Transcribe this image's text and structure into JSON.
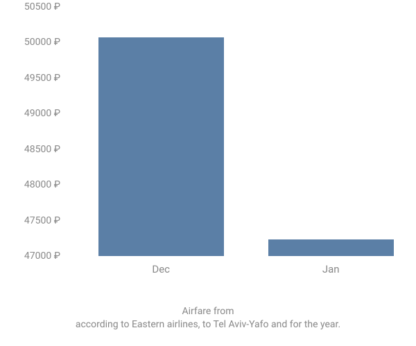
{
  "chart": {
    "type": "bar",
    "categories": [
      "Dec",
      "Jan"
    ],
    "values": [
      50070,
      47230
    ],
    "bar_color": "#5b7fa6",
    "bar_width_pct": 37,
    "bar_positions_pct": [
      28,
      78
    ],
    "ylim": [
      47000,
      50500
    ],
    "ytick_step": 500,
    "yticks": [
      50500,
      50000,
      49500,
      49000,
      48500,
      48000,
      47500,
      47000
    ],
    "currency_suffix": " ₽",
    "axis_label_color": "#888888",
    "axis_fontsize": 14,
    "background_color": "#ffffff"
  },
  "caption": {
    "line1": "Airfare from",
    "line2": "according to Eastern airlines, to Tel Aviv-Yafo and for the year."
  }
}
